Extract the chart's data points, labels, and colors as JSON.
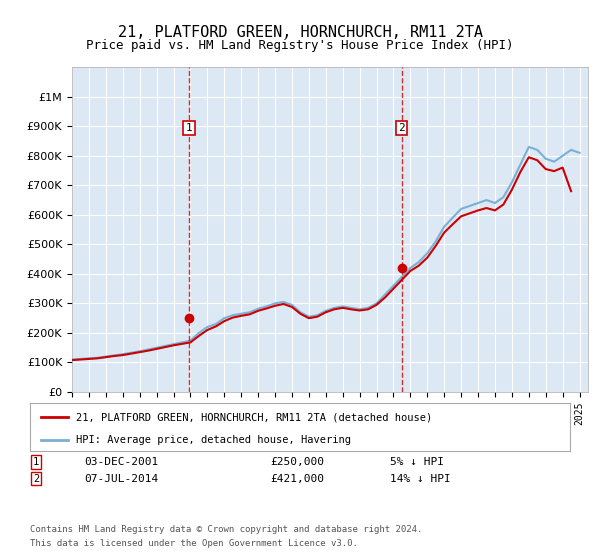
{
  "title": "21, PLATFORD GREEN, HORNCHURCH, RM11 2TA",
  "subtitle": "Price paid vs. HM Land Registry's House Price Index (HPI)",
  "legend_label_red": "21, PLATFORD GREEN, HORNCHURCH, RM11 2TA (detached house)",
  "legend_label_blue": "HPI: Average price, detached house, Havering",
  "annotation1_label": "1",
  "annotation1_date": "03-DEC-2001",
  "annotation1_price": "£250,000",
  "annotation1_pct": "5% ↓ HPI",
  "annotation2_label": "2",
  "annotation2_date": "07-JUL-2014",
  "annotation2_price": "£421,000",
  "annotation2_pct": "14% ↓ HPI",
  "footer1": "Contains HM Land Registry data © Crown copyright and database right 2024.",
  "footer2": "This data is licensed under the Open Government Licence v3.0.",
  "ylim": [
    0,
    1100000
  ],
  "yticks": [
    0,
    100000,
    200000,
    300000,
    400000,
    500000,
    600000,
    700000,
    800000,
    900000,
    1000000
  ],
  "xlim_start": 1995.0,
  "xlim_end": 2025.5,
  "plot_bg_color": "#dce9f5",
  "fig_bg_color": "#ffffff",
  "grid_color": "#ffffff",
  "red_color": "#cc0000",
  "blue_color": "#7ab0d4",
  "ann_x1": 2001.92,
  "ann_y1": 250000,
  "ann_x2": 2014.5,
  "ann_y2": 421000,
  "hpi_years": [
    1995,
    1995.5,
    1996,
    1996.5,
    1997,
    1997.5,
    1998,
    1998.5,
    1999,
    1999.5,
    2000,
    2000.5,
    2001,
    2001.5,
    2002,
    2002.5,
    2003,
    2003.5,
    2004,
    2004.5,
    2005,
    2005.5,
    2006,
    2006.5,
    2007,
    2007.5,
    2008,
    2008.5,
    2009,
    2009.5,
    2010,
    2010.5,
    2011,
    2011.5,
    2012,
    2012.5,
    2013,
    2013.5,
    2014,
    2014.5,
    2015,
    2015.5,
    2016,
    2016.5,
    2017,
    2017.5,
    2018,
    2018.5,
    2019,
    2019.5,
    2020,
    2020.5,
    2021,
    2021.5,
    2022,
    2022.5,
    2023,
    2023.5,
    2024,
    2024.5,
    2025
  ],
  "hpi_values": [
    110000,
    112000,
    114000,
    116000,
    120000,
    124000,
    128000,
    133000,
    138000,
    144000,
    150000,
    156000,
    162000,
    168000,
    174000,
    200000,
    220000,
    230000,
    250000,
    260000,
    265000,
    270000,
    282000,
    290000,
    300000,
    305000,
    295000,
    270000,
    255000,
    260000,
    275000,
    285000,
    290000,
    285000,
    280000,
    285000,
    300000,
    330000,
    360000,
    390000,
    420000,
    440000,
    470000,
    510000,
    560000,
    590000,
    620000,
    630000,
    640000,
    650000,
    640000,
    660000,
    710000,
    770000,
    830000,
    820000,
    790000,
    780000,
    800000,
    820000,
    810000
  ],
  "red_years": [
    1995,
    1995.5,
    1996,
    1996.5,
    1997,
    1997.5,
    1998,
    1998.5,
    1999,
    1999.5,
    2000,
    2000.5,
    2001,
    2001.5,
    2002,
    2002.5,
    2003,
    2003.5,
    2004,
    2004.5,
    2005,
    2005.5,
    2006,
    2006.5,
    2007,
    2007.5,
    2008,
    2008.5,
    2009,
    2009.5,
    2010,
    2010.5,
    2011,
    2011.5,
    2012,
    2012.5,
    2013,
    2013.5,
    2014,
    2014.5,
    2015,
    2015.5,
    2016,
    2016.5,
    2017,
    2017.5,
    2018,
    2018.5,
    2019,
    2019.5,
    2020,
    2020.5,
    2021,
    2021.5,
    2022,
    2022.5,
    2023,
    2023.5,
    2024,
    2024.5
  ],
  "red_values": [
    108000,
    110000,
    112000,
    114000,
    118000,
    122000,
    125000,
    130000,
    135000,
    140000,
    146000,
    152000,
    158000,
    163000,
    168000,
    190000,
    210000,
    222000,
    240000,
    252000,
    258000,
    263000,
    275000,
    283000,
    292000,
    298000,
    288000,
    265000,
    250000,
    255000,
    270000,
    280000,
    285000,
    280000,
    276000,
    280000,
    295000,
    320000,
    350000,
    380000,
    410000,
    428000,
    455000,
    495000,
    540000,
    568000,
    595000,
    605000,
    615000,
    623000,
    615000,
    635000,
    685000,
    745000,
    795000,
    785000,
    755000,
    748000,
    760000,
    680000
  ]
}
